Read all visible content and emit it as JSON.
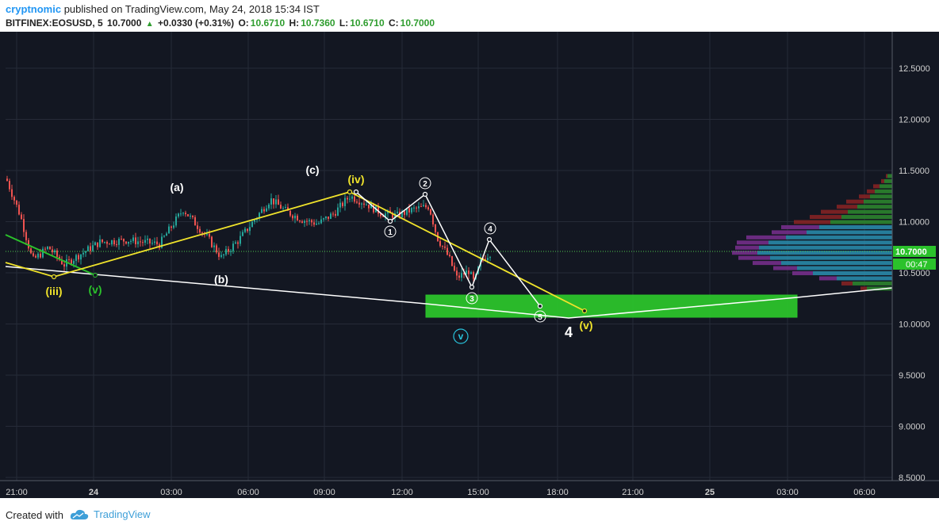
{
  "header": {
    "author": "cryptnomic",
    "published_text": "published on TradingView.com, May 24, 2018 15:34 IST",
    "symbol": "BITFINEX:EOSUSD, 5",
    "last": "10.7000",
    "change": "+0.0330 (+0.31%)",
    "o_label": "O:",
    "o_value": "10.6710",
    "h_label": "H:",
    "h_value": "10.7360",
    "l_label": "L:",
    "l_value": "10.6710",
    "c_label": "C:",
    "c_value": "10.7000"
  },
  "footer": {
    "created_with": "Created with",
    "brand": "TradingView"
  },
  "price_axis": {
    "ticks": [
      "12.5000",
      "12.0000",
      "11.5000",
      "11.0000",
      "10.5000",
      "10.0000",
      "9.5000",
      "9.0000",
      "8.5000"
    ],
    "current_price": "10.7000",
    "countdown": "00:47"
  },
  "time_axis": {
    "ticks": [
      "21:00",
      "24",
      "03:00",
      "06:00",
      "09:00",
      "12:00",
      "15:00",
      "18:00",
      "21:00",
      "25",
      "03:00",
      "06:00"
    ]
  },
  "wave_labels": {
    "a": "(a)",
    "b": "(b)",
    "c": "(c)",
    "iii": "(iii)",
    "iv": "(iv)",
    "v_green": "(v)",
    "v_yellow": "(v)",
    "n1": "1",
    "n2": "2",
    "n3": "3",
    "n4": "4",
    "n5": "5",
    "big4": "4",
    "circle_v": "v"
  },
  "colors": {
    "background": "#131722",
    "up": "#26a69a",
    "down": "#ef5350",
    "yellow": "#f0e32b",
    "green_box": "#2bc22b",
    "cyan": "#29c3dc",
    "white": "#ffffff"
  },
  "chart_data": {
    "type": "candlestick",
    "symbol": "BITFINEX:EOSUSD",
    "interval": "5",
    "ylim": [
      8.45,
      12.75
    ],
    "last_price": 10.7
  }
}
